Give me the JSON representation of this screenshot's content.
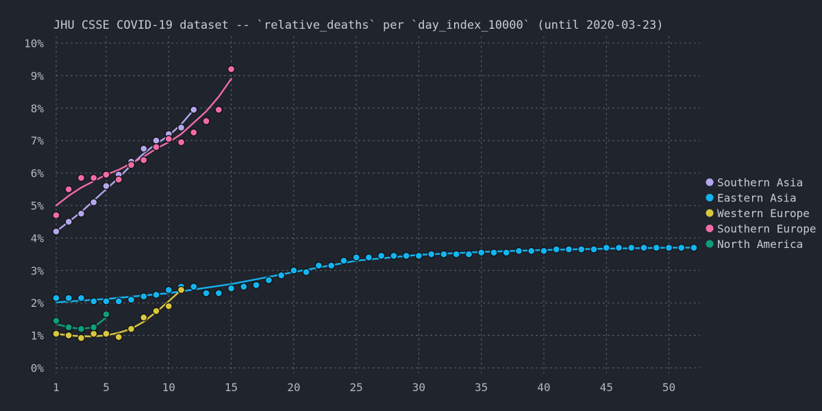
{
  "chart_data": {
    "type": "scatter",
    "title": "JHU CSSE COVID-19 dataset -- `relative_deaths` per `day_index_10000` (until 2020-03-23)",
    "xlabel": "",
    "ylabel": "",
    "xlim": [
      1,
      52
    ],
    "ylim": [
      0,
      10
    ],
    "x_ticks": [
      1,
      5,
      10,
      15,
      20,
      25,
      30,
      35,
      40,
      45,
      50
    ],
    "y_ticks": [
      0,
      1,
      2,
      3,
      4,
      5,
      6,
      7,
      8,
      9,
      10
    ],
    "y_tick_format": "%",
    "grid": true,
    "legend_position": "right",
    "series": [
      {
        "name": "Southern Asia",
        "color": "#b4a7ee",
        "x": [
          1,
          2,
          3,
          4,
          5,
          6,
          7,
          8,
          9,
          10,
          11,
          12
        ],
        "y": [
          4.2,
          4.5,
          4.75,
          5.1,
          5.6,
          5.95,
          6.35,
          6.75,
          7.0,
          7.2,
          7.4,
          7.95
        ],
        "trend": [
          [
            1,
            4.2
          ],
          [
            2,
            4.5
          ],
          [
            3,
            4.8
          ],
          [
            4,
            5.15
          ],
          [
            5,
            5.5
          ],
          [
            6,
            5.85
          ],
          [
            7,
            6.25
          ],
          [
            8,
            6.6
          ],
          [
            9,
            6.9
          ],
          [
            10,
            7.15
          ],
          [
            11,
            7.5
          ],
          [
            12,
            7.95
          ]
        ]
      },
      {
        "name": "Eastern Asia",
        "color": "#13b4f0",
        "x": [
          1,
          2,
          3,
          4,
          5,
          6,
          7,
          8,
          9,
          10,
          11,
          12,
          13,
          14,
          15,
          16,
          17,
          18,
          19,
          20,
          21,
          22,
          23,
          24,
          25,
          26,
          27,
          28,
          29,
          30,
          31,
          32,
          33,
          34,
          35,
          36,
          37,
          38,
          39,
          40,
          41,
          42,
          43,
          44,
          45,
          46,
          47,
          48,
          49,
          50,
          51,
          52
        ],
        "y": [
          2.15,
          2.15,
          2.15,
          2.05,
          2.05,
          2.05,
          2.1,
          2.2,
          2.25,
          2.4,
          2.5,
          2.5,
          2.3,
          2.3,
          2.45,
          2.5,
          2.55,
          2.7,
          2.85,
          3.0,
          2.95,
          3.15,
          3.15,
          3.3,
          3.4,
          3.4,
          3.45,
          3.45,
          3.45,
          3.45,
          3.5,
          3.5,
          3.5,
          3.5,
          3.55,
          3.55,
          3.55,
          3.6,
          3.6,
          3.6,
          3.65,
          3.65,
          3.65,
          3.65,
          3.7,
          3.7,
          3.7,
          3.7,
          3.7,
          3.7,
          3.7,
          3.7
        ],
        "trend": [
          [
            1,
            2.02
          ],
          [
            5,
            2.12
          ],
          [
            10,
            2.3
          ],
          [
            15,
            2.58
          ],
          [
            20,
            2.95
          ],
          [
            25,
            3.3
          ],
          [
            30,
            3.48
          ],
          [
            35,
            3.57
          ],
          [
            40,
            3.63
          ],
          [
            45,
            3.67
          ],
          [
            50,
            3.7
          ],
          [
            52,
            3.7
          ]
        ]
      },
      {
        "name": "Western Europe",
        "color": "#d8c63e",
        "x": [
          1,
          2,
          3,
          4,
          5,
          6,
          7,
          8,
          9,
          10,
          11
        ],
        "y": [
          1.05,
          1.0,
          0.92,
          1.05,
          1.05,
          0.95,
          1.2,
          1.55,
          1.75,
          1.9,
          2.4
        ],
        "trend": [
          [
            1,
            1.05
          ],
          [
            2,
            1.0
          ],
          [
            3,
            0.97
          ],
          [
            4,
            0.97
          ],
          [
            5,
            1.0
          ],
          [
            6,
            1.08
          ],
          [
            7,
            1.2
          ],
          [
            8,
            1.42
          ],
          [
            9,
            1.72
          ],
          [
            10,
            2.05
          ],
          [
            11,
            2.4
          ]
        ]
      },
      {
        "name": "Southern Europe",
        "color": "#f06ca8",
        "x": [
          1,
          2,
          3,
          4,
          5,
          6,
          7,
          8,
          9,
          10,
          11,
          12,
          13,
          14,
          15
        ],
        "y": [
          4.7,
          5.5,
          5.85,
          5.85,
          5.95,
          5.8,
          6.25,
          6.4,
          6.8,
          7.05,
          6.95,
          7.25,
          7.6,
          7.95,
          9.2
        ],
        "trend": [
          [
            1,
            5.0
          ],
          [
            2,
            5.3
          ],
          [
            3,
            5.55
          ],
          [
            4,
            5.75
          ],
          [
            5,
            5.95
          ],
          [
            6,
            6.1
          ],
          [
            7,
            6.3
          ],
          [
            8,
            6.5
          ],
          [
            9,
            6.75
          ],
          [
            10,
            6.95
          ],
          [
            11,
            7.2
          ],
          [
            12,
            7.55
          ],
          [
            13,
            7.9
          ],
          [
            14,
            8.35
          ],
          [
            15,
            8.9
          ]
        ]
      },
      {
        "name": "North America",
        "color": "#0d9e7a",
        "x": [
          1,
          2,
          3,
          4,
          5
        ],
        "y": [
          1.45,
          1.25,
          1.2,
          1.25,
          1.65
        ],
        "trend": [
          [
            1,
            1.35
          ],
          [
            2,
            1.25
          ],
          [
            3,
            1.2
          ],
          [
            4,
            1.25
          ],
          [
            5,
            1.55
          ]
        ]
      }
    ]
  }
}
